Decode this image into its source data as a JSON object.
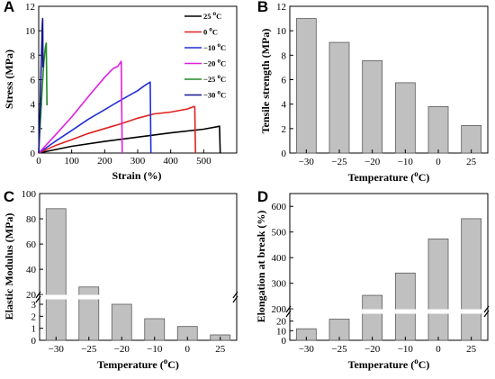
{
  "colors": {
    "bar_fill": "#c0c0c0",
    "bar_stroke": "#5a5a5a",
    "axis": "#000000"
  },
  "chart_data": [
    {
      "panel": "A",
      "type": "line",
      "xlabel": "Strain (%)",
      "ylabel": "Stress (MPa)",
      "xlim": [
        0,
        600
      ],
      "ylim": [
        0,
        12
      ],
      "x_ticks": [
        "0",
        "100",
        "200",
        "300",
        "400",
        "500"
      ],
      "y_ticks": [
        "0",
        "2",
        "4",
        "6",
        "8",
        "10",
        "12"
      ],
      "legend_position": "top-right",
      "series": [
        {
          "name": "25 ",
          "sup": "o",
          "unit": "C",
          "color": "#000000",
          "x": [
            0,
            100,
            200,
            300,
            400,
            500,
            540,
            548,
            550
          ],
          "y": [
            0,
            0.55,
            0.95,
            1.3,
            1.65,
            1.95,
            2.15,
            2.2,
            0
          ]
        },
        {
          "name": "0 ",
          "sup": "o",
          "unit": "C",
          "color": "#e02020",
          "x": [
            0,
            50,
            100,
            150,
            200,
            250,
            300,
            350,
            400,
            450,
            470,
            473,
            475
          ],
          "y": [
            0,
            0.6,
            1.1,
            1.6,
            2.0,
            2.4,
            2.85,
            3.2,
            3.35,
            3.6,
            3.8,
            3.8,
            0
          ]
        },
        {
          "name": "−10 ",
          "sup": "o",
          "unit": "C",
          "color": "#1f2fd8",
          "x": [
            0,
            50,
            100,
            150,
            200,
            250,
            300,
            320,
            338,
            340
          ],
          "y": [
            0,
            0.95,
            1.85,
            2.75,
            3.55,
            4.35,
            5.1,
            5.5,
            5.8,
            0
          ]
        },
        {
          "name": "−20 ",
          "sup": "o",
          "unit": "C",
          "color": "#e020e0",
          "x": [
            0,
            50,
            100,
            150,
            200,
            225,
            240,
            250,
            253
          ],
          "y": [
            0,
            1.45,
            2.95,
            4.6,
            6.2,
            6.9,
            7.1,
            7.5,
            0
          ]
        },
        {
          "name": "−25 ",
          "sup": "o",
          "unit": "C",
          "color": "#22882a",
          "x": [
            0,
            5,
            10,
            15,
            20,
            23,
            25
          ],
          "y": [
            0,
            2.5,
            5.0,
            7.2,
            8.6,
            9.0,
            3.9
          ]
        },
        {
          "name": "−30 ",
          "sup": "o",
          "unit": "C",
          "color": "#14148f",
          "x": [
            0,
            3,
            6,
            9,
            11,
            12,
            13
          ],
          "y": [
            0,
            2.5,
            5.5,
            8.5,
            10.5,
            11.0,
            7.0
          ]
        }
      ]
    },
    {
      "panel": "B",
      "type": "bar",
      "xlabel": "Temperature (",
      "xlabel_sup": "o",
      "xlabel_end": "C)",
      "ylabel": "Tensile strength (MPa)",
      "ylim": [
        0,
        12
      ],
      "y_ticks": [
        "0",
        "2",
        "4",
        "6",
        "8",
        "10",
        "12"
      ],
      "categories": [
        "−30",
        "−25",
        "−20",
        "−10",
        "0",
        "25"
      ],
      "values": [
        11.0,
        9.05,
        7.55,
        5.75,
        3.8,
        2.25
      ]
    },
    {
      "panel": "C",
      "type": "bar",
      "xlabel": "Temperature (",
      "xlabel_sup": "o",
      "xlabel_end": "C)",
      "ylabel": "Elastic Modulus (MPa)",
      "axis_break": {
        "lower_ylim": [
          0,
          3.6
        ],
        "upper_ylim": [
          18,
          100
        ]
      },
      "y_ticks_lower": [
        "0",
        "1",
        "2",
        "3"
      ],
      "y_ticks_upper": [
        "20",
        "40",
        "60",
        "80",
        "100"
      ],
      "categories": [
        "−30",
        "−25",
        "−20",
        "−10",
        "0",
        "25"
      ],
      "values": [
        88,
        26,
        3.0,
        1.8,
        1.15,
        0.45
      ]
    },
    {
      "panel": "D",
      "type": "bar",
      "xlabel": "Temperature (",
      "xlabel_sup": "o",
      "xlabel_end": "C)",
      "ylabel": "Elongation at break (%)",
      "axis_break": {
        "lower_ylim": [
          0,
          30
        ],
        "upper_ylim": [
          190,
          650
        ]
      },
      "y_ticks_lower": [
        "0",
        "10",
        "20"
      ],
      "y_ticks_upper": [
        "200",
        "300",
        "400",
        "500",
        "600"
      ],
      "categories": [
        "−30",
        "−25",
        "−20",
        "−10",
        "0",
        "25"
      ],
      "values": [
        12,
        22,
        253,
        340,
        473,
        552
      ]
    }
  ]
}
